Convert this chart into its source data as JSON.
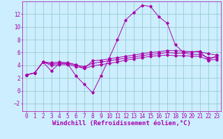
{
  "xlabel": "Windchill (Refroidissement éolien,°C)",
  "background_color": "#cceeff",
  "line_color": "#aa00aa",
  "grid_color": "#99cccc",
  "xlim": [
    -0.5,
    23.5
  ],
  "ylim": [
    -3.2,
    14.0
  ],
  "yticks": [
    -2,
    0,
    2,
    4,
    6,
    8,
    10,
    12
  ],
  "xticks": [
    0,
    1,
    2,
    3,
    4,
    5,
    6,
    7,
    8,
    9,
    10,
    11,
    12,
    13,
    14,
    15,
    16,
    17,
    18,
    19,
    20,
    21,
    22,
    23
  ],
  "series": [
    [
      2.5,
      2.8,
      4.5,
      3.1,
      4.3,
      4.2,
      2.3,
      1.0,
      -0.3,
      2.3,
      5.1,
      8.0,
      11.1,
      12.3,
      13.4,
      13.2,
      11.6,
      10.6,
      7.2,
      6.0,
      6.1,
      6.2,
      4.8,
      5.5
    ],
    [
      2.5,
      2.8,
      4.5,
      4.4,
      4.5,
      4.4,
      4.1,
      3.5,
      4.7,
      4.8,
      5.0,
      5.2,
      5.4,
      5.6,
      5.8,
      6.0,
      6.1,
      6.3,
      6.3,
      6.2,
      6.1,
      6.1,
      5.8,
      5.6
    ],
    [
      2.5,
      2.8,
      4.5,
      4.2,
      4.3,
      4.3,
      4.0,
      3.8,
      4.3,
      4.5,
      4.7,
      4.9,
      5.1,
      5.3,
      5.5,
      5.7,
      5.8,
      6.0,
      5.9,
      5.9,
      5.7,
      5.7,
      5.2,
      5.2
    ],
    [
      2.5,
      2.8,
      4.5,
      4.0,
      4.1,
      4.1,
      3.8,
      3.5,
      3.9,
      4.1,
      4.3,
      4.5,
      4.8,
      5.0,
      5.2,
      5.4,
      5.5,
      5.6,
      5.5,
      5.5,
      5.4,
      5.4,
      4.8,
      4.9
    ]
  ],
  "xlabel_fontsize": 6.5,
  "tick_fontsize": 5.5,
  "font_family": "monospace"
}
